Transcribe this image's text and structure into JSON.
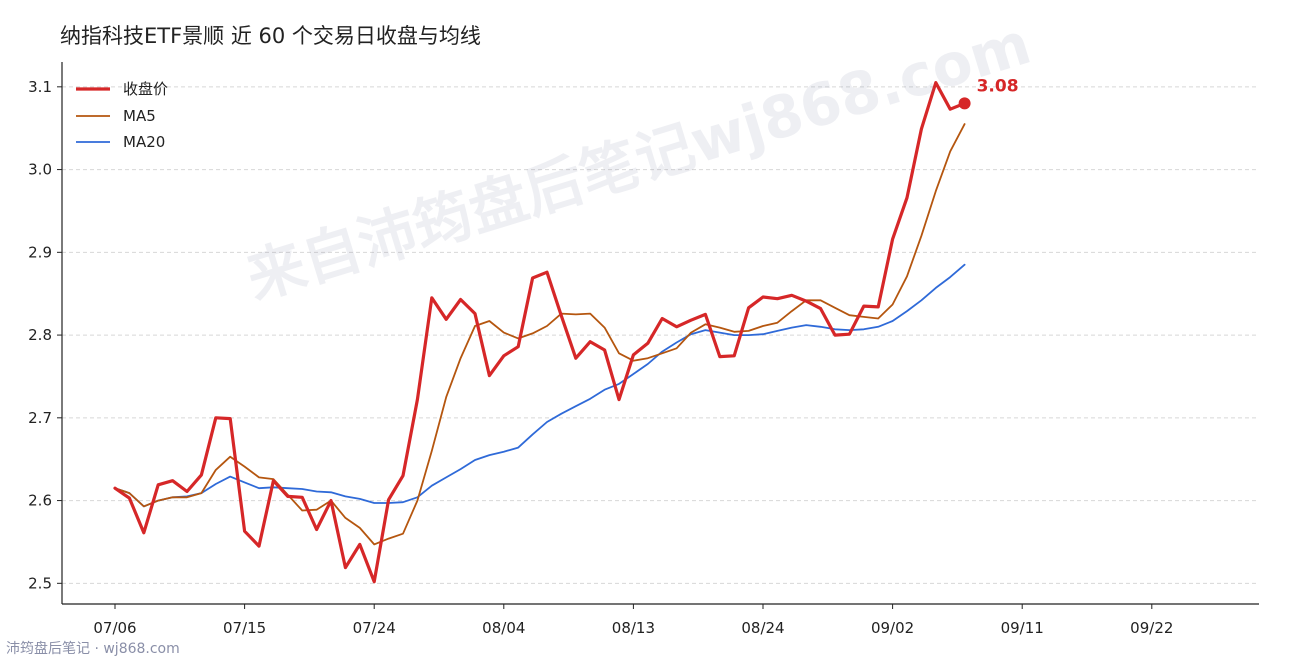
{
  "chart_data": {
    "type": "line",
    "title": "纳指科技ETF景顺 近 60 个交易日收盘与均线",
    "xlabel": "",
    "ylabel": "",
    "ylim": [
      2.475,
      3.13
    ],
    "yticks": [
      "2.5",
      "2.6",
      "2.7",
      "2.8",
      "2.9",
      "3.0",
      "3.1"
    ],
    "xticks": [
      "07/06",
      "07/15",
      "07/24",
      "08/04",
      "08/13",
      "08/24",
      "09/02",
      "09/11",
      "09/22"
    ],
    "grid": "horizontal",
    "legend_position": "top-left",
    "last_value_label": "3.08",
    "series": [
      {
        "name": "收盘价",
        "color": "#d62728",
        "values": [
          2.615,
          2.603,
          2.561,
          2.619,
          2.624,
          2.611,
          2.631,
          2.7,
          2.699,
          2.563,
          2.545,
          2.624,
          2.605,
          2.604,
          2.565,
          2.6,
          2.519,
          2.547,
          2.502,
          2.601,
          2.63,
          2.722,
          2.845,
          2.819,
          2.843,
          2.826,
          2.751,
          2.775,
          2.786,
          2.869,
          2.876,
          2.823,
          2.772,
          2.792,
          2.782,
          2.722,
          2.776,
          2.79,
          2.82,
          2.81,
          2.818,
          2.825,
          2.774,
          2.775,
          2.833,
          2.846,
          2.844,
          2.848,
          2.841,
          2.832,
          2.8,
          2.801,
          2.835,
          2.834,
          2.916,
          2.966,
          3.049,
          3.105,
          3.073,
          3.08
        ]
      },
      {
        "name": "MA5",
        "color": "#b5560f",
        "values": [
          2.615,
          2.609,
          2.593,
          2.6,
          2.604,
          2.604,
          2.609,
          2.637,
          2.653,
          2.641,
          2.628,
          2.626,
          2.607,
          2.588,
          2.589,
          2.6,
          2.579,
          2.567,
          2.547,
          2.554,
          2.56,
          2.6,
          2.66,
          2.725,
          2.772,
          2.811,
          2.817,
          2.803,
          2.796,
          2.802,
          2.811,
          2.826,
          2.825,
          2.826,
          2.809,
          2.778,
          2.769,
          2.772,
          2.778,
          2.784,
          2.803,
          2.813,
          2.809,
          2.804,
          2.805,
          2.811,
          2.815,
          2.829,
          2.842,
          2.842,
          2.833,
          2.824,
          2.822,
          2.82,
          2.837,
          2.871,
          2.92,
          2.974,
          3.022,
          3.055
        ]
      },
      {
        "name": "MA20",
        "color": "#2f6ad8",
        "values": [
          2.615,
          2.609,
          2.593,
          2.6,
          2.604,
          2.605,
          2.609,
          2.62,
          2.629,
          2.622,
          2.615,
          2.616,
          2.615,
          2.614,
          2.611,
          2.61,
          2.605,
          2.602,
          2.597,
          2.597,
          2.598,
          2.604,
          2.618,
          2.628,
          2.638,
          2.649,
          2.655,
          2.659,
          2.664,
          2.68,
          2.695,
          2.705,
          2.714,
          2.723,
          2.734,
          2.741,
          2.753,
          2.765,
          2.78,
          2.791,
          2.801,
          2.806,
          2.803,
          2.8,
          2.8,
          2.801,
          2.805,
          2.809,
          2.812,
          2.81,
          2.807,
          2.806,
          2.807,
          2.81,
          2.817,
          2.829,
          2.842,
          2.857,
          2.87,
          2.885
        ]
      }
    ]
  },
  "footer_credit": "沛筠盘后笔记 · wj868.com",
  "watermark": "来自沛筠盘后笔记wj868.com"
}
